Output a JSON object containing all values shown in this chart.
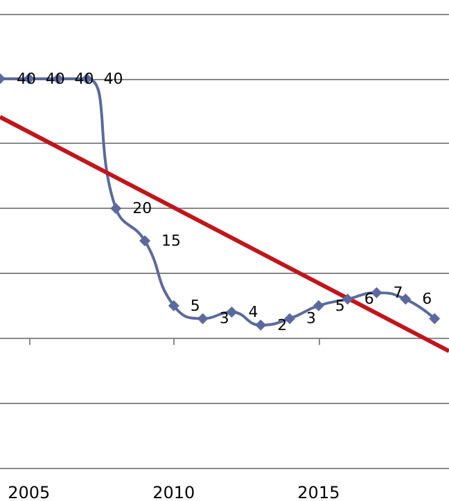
{
  "chart_data": {
    "type": "line",
    "x": [
      2004,
      2005,
      2006,
      2007,
      2008,
      2009,
      2010,
      2011,
      2012,
      2013,
      2014,
      2015,
      2016,
      2017,
      2018,
      2019
    ],
    "series": [
      {
        "color": "#5b6a9e",
        "marker": "diamond",
        "values": [
          40,
          40,
          40,
          40,
          20,
          15,
          5,
          3,
          4,
          2,
          3,
          5,
          6,
          7,
          6,
          3
        ],
        "value_labels": [
          "40",
          "40",
          "40",
          "40",
          "20",
          "15",
          "5",
          "3",
          "4",
          "2",
          "3",
          "5",
          "6",
          "7",
          "6",
          null
        ]
      },
      {
        "color": "#c0161b",
        "marker": "none",
        "x": [
          2004,
          2019.5
        ],
        "values": [
          34.1,
          -2.0
        ]
      }
    ],
    "xlim": [
      2004,
      2019.5
    ],
    "xticks": [
      2005,
      2010,
      2015
    ],
    "ylim": [
      -20,
      50
    ],
    "yticks": [
      {
        "value": -20,
        "label": null
      },
      {
        "value": -10,
        "label": null
      },
      {
        "value": 0,
        "label": null
      },
      {
        "value": 10,
        "label": null
      },
      {
        "value": 20,
        "label": null
      },
      {
        "value": 30,
        "label": null
      },
      {
        "value": 40,
        "label": null
      },
      {
        "value": 50,
        "label": null
      }
    ],
    "grid": "y",
    "tick_labels": "x"
  }
}
